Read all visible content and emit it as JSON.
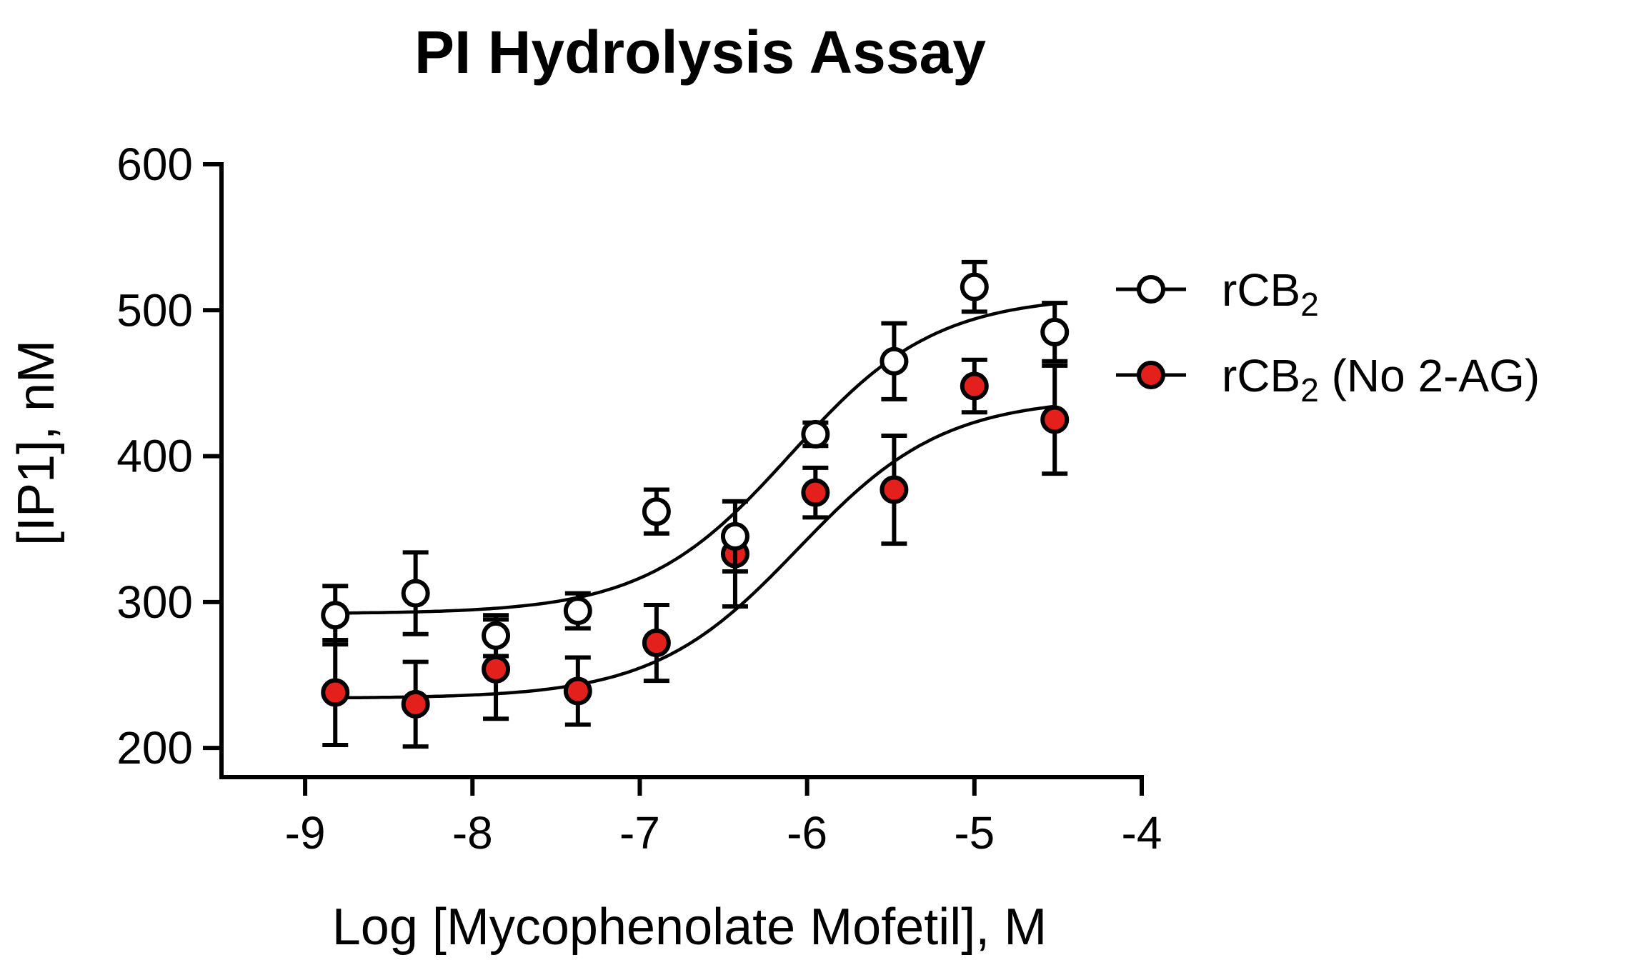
{
  "chart_data": {
    "type": "scatter",
    "title": "PI Hydrolysis Assay",
    "xlabel": "Log [Mycophenolate Mofetil], M",
    "ylabel": "[IP1], nM",
    "xlim": [
      -9.5,
      -4
    ],
    "ylim": [
      180,
      600
    ],
    "xticks": [
      -9,
      -8,
      -7,
      -6,
      -5,
      -4
    ],
    "yticks": [
      200,
      300,
      400,
      500,
      600
    ],
    "xtick_labels": [
      "-9",
      "-8",
      "-7",
      "-6",
      "-5",
      "-4"
    ],
    "ytick_labels": [
      "200",
      "300",
      "400",
      "500",
      "600"
    ],
    "legend_position": "right",
    "series": [
      {
        "name_main": "rCB",
        "name_sub": "2",
        "name_suffix": "",
        "marker": "open-circle",
        "fill_color": "#ffffff",
        "stroke_color": "#000000",
        "points": [
          {
            "x": -8.82,
            "y": 291,
            "err": 20
          },
          {
            "x": -8.34,
            "y": 306,
            "err": 28
          },
          {
            "x": -7.86,
            "y": 277,
            "err": 14
          },
          {
            "x": -7.37,
            "y": 294,
            "err": 12
          },
          {
            "x": -6.9,
            "y": 362,
            "err": 15
          },
          {
            "x": -6.43,
            "y": 345,
            "err": 24
          },
          {
            "x": -5.95,
            "y": 415,
            "err": 8
          },
          {
            "x": -5.48,
            "y": 465,
            "err": 26
          },
          {
            "x": -5.0,
            "y": 516,
            "err": 17
          },
          {
            "x": -4.52,
            "y": 485,
            "err": 20
          }
        ],
        "fit": {
          "bottom": 292,
          "top": 510,
          "logEC50": -6.1,
          "hill": 1
        }
      },
      {
        "name_main": "rCB",
        "name_sub": "2",
        "name_suffix": " (No 2-AG)",
        "marker": "filled-circle",
        "fill_color": "#e3201b",
        "stroke_color": "#000000",
        "points": [
          {
            "x": -8.82,
            "y": 238,
            "err": 36
          },
          {
            "x": -8.34,
            "y": 230,
            "err": 29
          },
          {
            "x": -7.86,
            "y": 254,
            "err": 34
          },
          {
            "x": -7.37,
            "y": 239,
            "err": 23
          },
          {
            "x": -6.9,
            "y": 272,
            "err": 26
          },
          {
            "x": -6.43,
            "y": 333,
            "err": 36
          },
          {
            "x": -5.95,
            "y": 375,
            "err": 17
          },
          {
            "x": -5.48,
            "y": 377,
            "err": 37
          },
          {
            "x": -5.0,
            "y": 448,
            "err": 18
          },
          {
            "x": -4.52,
            "y": 425,
            "err": 37
          }
        ],
        "fit": {
          "bottom": 234,
          "top": 440,
          "logEC50": -6.05,
          "hill": 1
        }
      }
    ]
  }
}
